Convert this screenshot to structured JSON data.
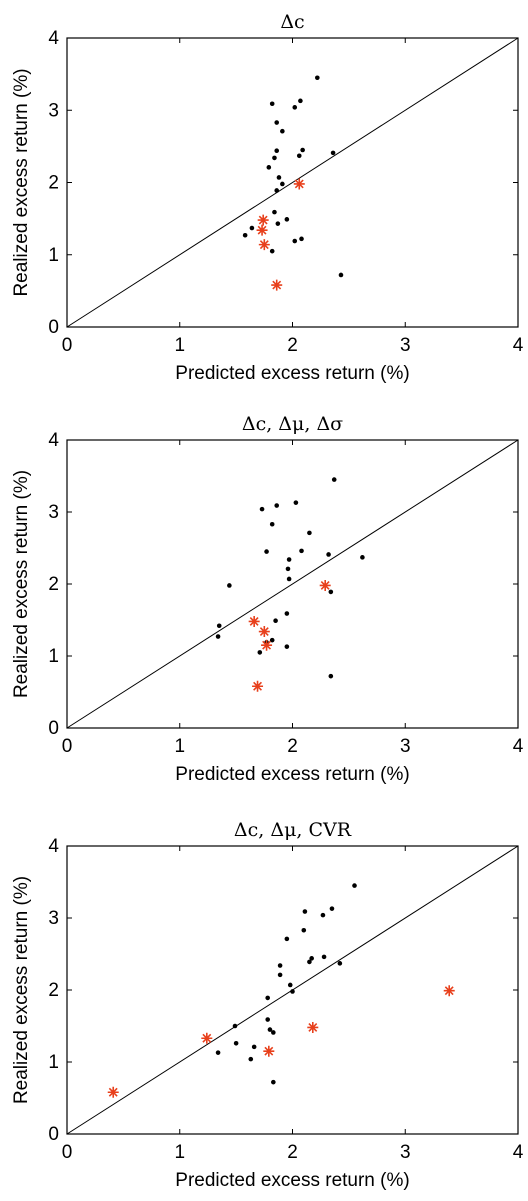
{
  "chart_data": [
    {
      "type": "scatter",
      "title": "Δc",
      "xlabel": "Predicted excess return (%)",
      "ylabel": "Realized excess return (%)",
      "xlim": [
        0,
        4
      ],
      "ylim": [
        0,
        4
      ],
      "xticks": [
        "0",
        "1",
        "2",
        "3",
        "4"
      ],
      "yticks": [
        "0",
        "1",
        "2",
        "3",
        "4"
      ],
      "reference_line": "45-degree",
      "series": [
        {
          "marker": "dot",
          "color": "#000000",
          "points": [
            [
              2.22,
              3.45
            ],
            [
              1.82,
              3.09
            ],
            [
              2.07,
              3.13
            ],
            [
              2.02,
              3.04
            ],
            [
              1.86,
              2.83
            ],
            [
              1.91,
              2.71
            ],
            [
              2.09,
              2.45
            ],
            [
              2.06,
              2.37
            ],
            [
              2.36,
              2.41
            ],
            [
              1.86,
              2.44
            ],
            [
              1.84,
              2.34
            ],
            [
              1.79,
              2.21
            ],
            [
              1.88,
              2.07
            ],
            [
              1.91,
              1.98
            ],
            [
              1.86,
              1.89
            ],
            [
              1.84,
              1.59
            ],
            [
              1.95,
              1.49
            ],
            [
              1.87,
              1.43
            ],
            [
              1.58,
              1.27
            ],
            [
              1.64,
              1.37
            ],
            [
              2.02,
              1.19
            ],
            [
              2.08,
              1.22
            ],
            [
              1.82,
              1.05
            ],
            [
              2.43,
              0.72
            ]
          ]
        },
        {
          "marker": "star",
          "color": "#e8401c",
          "points": [
            [
              2.06,
              1.98
            ],
            [
              1.74,
              1.48
            ],
            [
              1.73,
              1.34
            ],
            [
              1.75,
              1.14
            ],
            [
              1.86,
              0.58
            ]
          ]
        }
      ]
    },
    {
      "type": "scatter",
      "title": "Δc, Δμ, Δσ",
      "xlabel": "Predicted excess return (%)",
      "ylabel": "Realized excess return (%)",
      "xlim": [
        0,
        4
      ],
      "ylim": [
        0,
        4
      ],
      "xticks": [
        "0",
        "1",
        "2",
        "3",
        "4"
      ],
      "yticks": [
        "0",
        "1",
        "2",
        "3",
        "4"
      ],
      "reference_line": "45-degree",
      "series": [
        {
          "marker": "dot",
          "color": "#000000",
          "points": [
            [
              2.37,
              3.45
            ],
            [
              2.03,
              3.13
            ],
            [
              1.86,
              3.09
            ],
            [
              1.73,
              3.04
            ],
            [
              1.82,
              2.83
            ],
            [
              2.15,
              2.71
            ],
            [
              1.77,
              2.45
            ],
            [
              2.32,
              2.41
            ],
            [
              2.08,
              2.46
            ],
            [
              2.62,
              2.37
            ],
            [
              1.97,
              2.34
            ],
            [
              1.96,
              2.21
            ],
            [
              1.97,
              2.07
            ],
            [
              1.44,
              1.98
            ],
            [
              2.34,
              1.89
            ],
            [
              1.95,
              1.59
            ],
            [
              1.85,
              1.49
            ],
            [
              1.35,
              1.42
            ],
            [
              1.34,
              1.27
            ],
            [
              1.82,
              1.22
            ],
            [
              1.77,
              1.19
            ],
            [
              1.95,
              1.13
            ],
            [
              1.71,
              1.05
            ],
            [
              2.34,
              0.72
            ]
          ]
        },
        {
          "marker": "star",
          "color": "#e8401c",
          "points": [
            [
              2.29,
              1.98
            ],
            [
              1.66,
              1.48
            ],
            [
              1.75,
              1.34
            ],
            [
              1.77,
              1.15
            ],
            [
              1.69,
              0.58
            ]
          ]
        }
      ]
    },
    {
      "type": "scatter",
      "title": "Δc, Δμ, CVR",
      "xlabel": "Predicted excess return (%)",
      "ylabel": "Realized excess return (%)",
      "xlim": [
        0,
        4
      ],
      "ylim": [
        0,
        4
      ],
      "xticks": [
        "0",
        "1",
        "2",
        "3",
        "4"
      ],
      "yticks": [
        "0",
        "1",
        "2",
        "3",
        "4"
      ],
      "reference_line": "45-degree",
      "series": [
        {
          "marker": "dot",
          "color": "#000000",
          "points": [
            [
              2.55,
              3.45
            ],
            [
              2.35,
              3.13
            ],
            [
              2.11,
              3.09
            ],
            [
              2.27,
              3.04
            ],
            [
              2.1,
              2.83
            ],
            [
              1.95,
              2.71
            ],
            [
              2.28,
              2.46
            ],
            [
              2.17,
              2.44
            ],
            [
              2.15,
              2.39
            ],
            [
              2.42,
              2.37
            ],
            [
              1.89,
              2.34
            ],
            [
              1.89,
              2.21
            ],
            [
              1.98,
              2.07
            ],
            [
              2.0,
              1.98
            ],
            [
              1.78,
              1.89
            ],
            [
              1.78,
              1.59
            ],
            [
              1.49,
              1.5
            ],
            [
              1.8,
              1.45
            ],
            [
              1.83,
              1.41
            ],
            [
              1.5,
              1.26
            ],
            [
              1.66,
              1.21
            ],
            [
              1.34,
              1.13
            ],
            [
              1.63,
              1.04
            ],
            [
              1.83,
              0.72
            ]
          ]
        },
        {
          "marker": "star",
          "color": "#e8401c",
          "points": [
            [
              3.39,
              1.99
            ],
            [
              2.18,
              1.48
            ],
            [
              1.24,
              1.33
            ],
            [
              1.79,
              1.15
            ],
            [
              0.41,
              0.58
            ]
          ]
        }
      ]
    }
  ]
}
